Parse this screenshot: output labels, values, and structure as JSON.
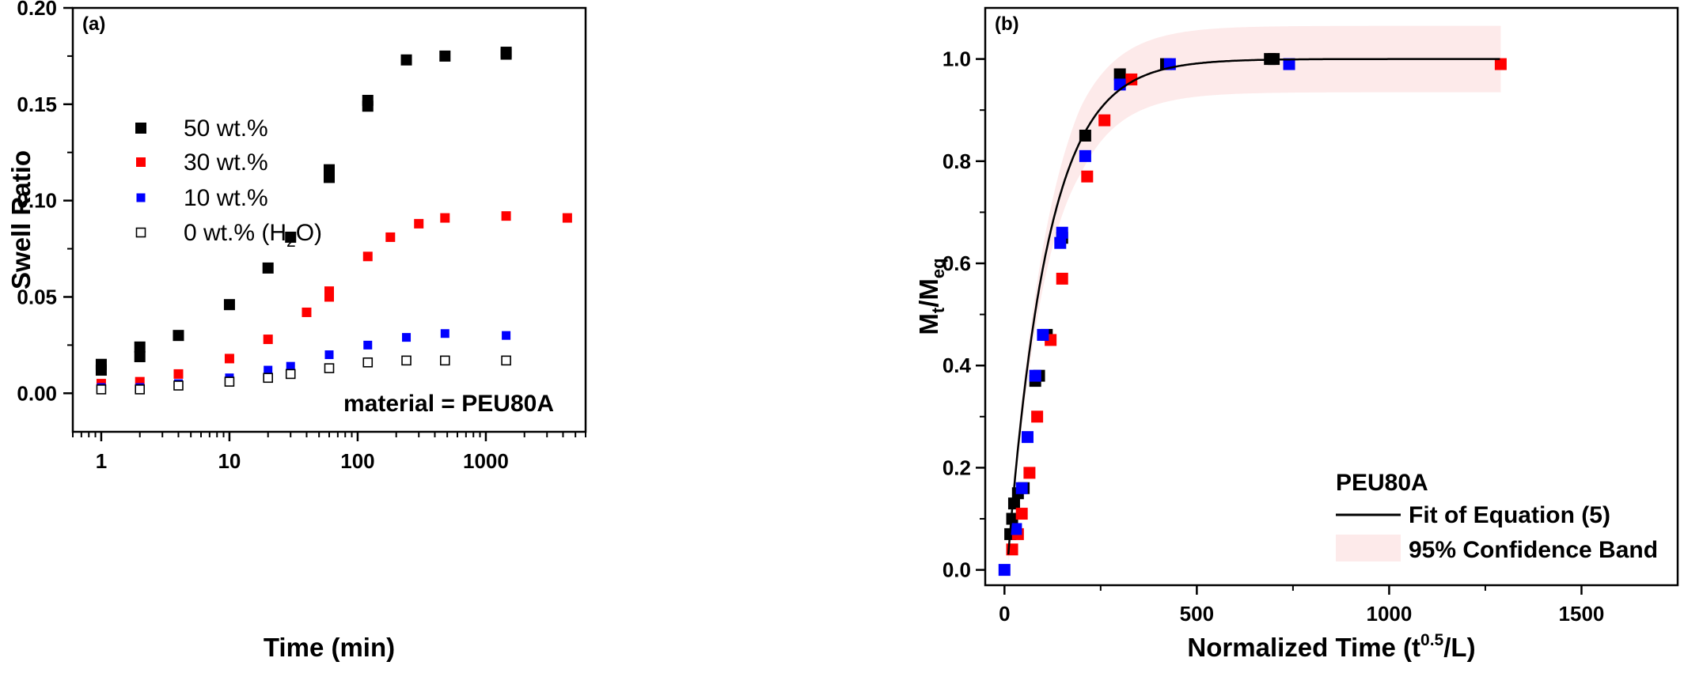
{
  "chart_data": [
    {
      "panel": "(a)",
      "type": "scatter",
      "xlabel": "Time (min)",
      "ylabel": "Swell Ratio",
      "xscale": "log",
      "xlim": [
        0.6,
        6000
      ],
      "ylim": [
        -0.02,
        0.2
      ],
      "xticks": [
        1,
        10,
        100,
        1000
      ],
      "xtick_labels": [
        "1",
        "10",
        "100",
        "1000"
      ],
      "yticks": [
        0.0,
        0.05,
        0.1,
        0.15,
        0.2
      ],
      "ytick_labels": [
        "0.00",
        "0.05",
        "0.10",
        "0.15",
        "0.20"
      ],
      "annotation": "material = PEU80A",
      "legend_position": "upper-left",
      "series": [
        {
          "name": "50 wt.%",
          "color": "#000000",
          "marker": "filled-square",
          "x": [
            1,
            1,
            2,
            2,
            4,
            10,
            20,
            30,
            60,
            60,
            120,
            120,
            240,
            480,
            1440,
            1440
          ],
          "y": [
            0.012,
            0.015,
            0.019,
            0.024,
            0.03,
            0.046,
            0.065,
            0.081,
            0.112,
            0.116,
            0.149,
            0.152,
            0.173,
            0.175,
            0.176,
            0.177
          ]
        },
        {
          "name": "30 wt.%",
          "color": "#ff0000",
          "marker": "filled-square",
          "x": [
            1,
            2,
            4,
            10,
            20,
            40,
            60,
            60,
            120,
            180,
            300,
            480,
            1440,
            4320
          ],
          "y": [
            0.005,
            0.006,
            0.01,
            0.018,
            0.028,
            0.042,
            0.05,
            0.053,
            0.071,
            0.081,
            0.088,
            0.091,
            0.092,
            0.091
          ]
        },
        {
          "name": "10 wt.%",
          "color": "#0000ff",
          "marker": "filled-square",
          "x": [
            1,
            2,
            4,
            10,
            20,
            30,
            60,
            120,
            240,
            480,
            1440
          ],
          "y": [
            0.003,
            0.003,
            0.005,
            0.008,
            0.012,
            0.014,
            0.02,
            0.025,
            0.029,
            0.031,
            0.03
          ]
        },
        {
          "name": "0 wt.% (H2O)",
          "name_main": "0 wt.% (H",
          "name_sub": "2",
          "name_end": "O)",
          "color": "#000000",
          "marker": "open-square",
          "x": [
            1,
            2,
            4,
            10,
            20,
            30,
            60,
            120,
            240,
            480,
            1440
          ],
          "y": [
            0.002,
            0.002,
            0.004,
            0.006,
            0.008,
            0.01,
            0.013,
            0.016,
            0.017,
            0.017,
            0.017
          ]
        }
      ]
    },
    {
      "panel": "(b)",
      "type": "scatter",
      "xlabel_main": "Normalized Time (t",
      "xlabel_sup": "0.5",
      "xlabel_end": "/L)",
      "ylabel_m": "M",
      "ylabel_sub1": "t",
      "ylabel_mid": "/M",
      "ylabel_sub2": "eq",
      "xlim": [
        -50,
        1750
      ],
      "ylim": [
        -0.03,
        1.1
      ],
      "xticks": [
        0,
        500,
        1000,
        1500
      ],
      "xtick_labels": [
        "0",
        "500",
        "1000",
        "1500"
      ],
      "yticks": [
        0.0,
        0.2,
        0.4,
        0.6,
        0.8,
        1.0
      ],
      "ytick_labels": [
        "0.0",
        "0.2",
        "0.4",
        "0.6",
        "0.8",
        "1.0"
      ],
      "legend_position": "lower-right",
      "legend_title": "PEU80A",
      "fit_label": "Fit of Equation (5)",
      "band_label": "95% Confidence Band",
      "fit": {
        "color": "#000000",
        "x0": 10,
        "rate": 0.0096,
        "y0": 0.03
      },
      "band": {
        "color": "#fdeaea",
        "halfwidth": 0.065
      },
      "series": [
        {
          "name": "50 wt.%",
          "color": "#000000",
          "x": [
            15,
            20,
            25,
            35,
            50,
            80,
            90,
            110,
            150,
            210,
            300,
            420,
            690,
            700
          ],
          "y": [
            0.07,
            0.1,
            0.13,
            0.15,
            0.16,
            0.37,
            0.38,
            0.46,
            0.65,
            0.85,
            0.97,
            0.99,
            1.0,
            1.0
          ]
        },
        {
          "name": "30 wt.%",
          "color": "#ff0000",
          "x": [
            20,
            35,
            45,
            65,
            85,
            120,
            150,
            215,
            260,
            330,
            1290
          ],
          "y": [
            0.04,
            0.07,
            0.11,
            0.19,
            0.3,
            0.45,
            0.57,
            0.77,
            0.88,
            0.96,
            0.99
          ]
        },
        {
          "name": "10 wt.%",
          "color": "#0000ff",
          "x": [
            0,
            30,
            45,
            60,
            80,
            100,
            145,
            150,
            210,
            300,
            430,
            740
          ],
          "y": [
            0.0,
            0.08,
            0.16,
            0.26,
            0.38,
            0.46,
            0.64,
            0.66,
            0.81,
            0.95,
            0.99,
            0.99
          ]
        }
      ]
    }
  ]
}
